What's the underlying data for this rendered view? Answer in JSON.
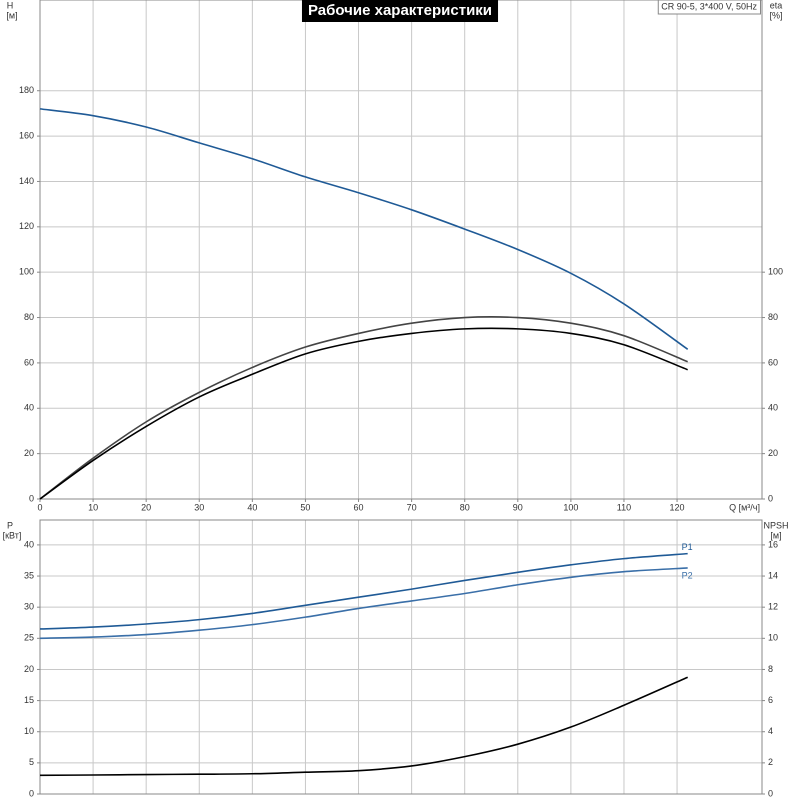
{
  "chart_data": [
    {
      "type": "line",
      "title": "Рабочие характеристики",
      "subtitle": "CR 90-5, 3*400 V, 50Hz",
      "xlabel": "Q [м³/ч]",
      "ylabel": "H",
      "yunit": "[м]",
      "y2label": "eta",
      "y2unit": "[%]",
      "x": [
        0,
        10,
        20,
        30,
        40,
        50,
        60,
        70,
        80,
        90,
        100,
        110,
        122
      ],
      "xlim": [
        0,
        136
      ],
      "xticks": [
        0,
        10,
        20,
        30,
        40,
        50,
        60,
        70,
        80,
        90,
        100,
        110,
        120
      ],
      "ylim": [
        0,
        220
      ],
      "yticks": [
        0,
        20,
        40,
        60,
        80,
        100,
        120,
        140,
        160,
        180
      ],
      "y2lim": [
        0,
        220
      ],
      "y2ticks": [
        0,
        20,
        40,
        60,
        80,
        100
      ],
      "grid": true,
      "series": [
        {
          "color": "#1f5a96",
          "values": [
            172,
            169,
            164,
            157,
            150,
            142,
            135,
            127.5,
            119,
            110,
            99.5,
            86,
            66
          ]
        },
        {
          "color": "#444444",
          "axis": "y2",
          "values": [
            0,
            18,
            34,
            47,
            58,
            67,
            73,
            77.5,
            80,
            80,
            77.5,
            72,
            60.5
          ]
        },
        {
          "color": "#000000",
          "axis": "y2",
          "values": [
            0,
            17,
            32,
            45,
            55,
            64,
            69.5,
            73,
            75,
            75,
            73,
            68,
            57
          ]
        }
      ]
    },
    {
      "type": "line",
      "ylabel": "P",
      "yunit": "[кВт]",
      "y2label": "NPSH",
      "y2unit": "[м]",
      "x": [
        0,
        10,
        20,
        30,
        40,
        50,
        60,
        70,
        80,
        90,
        100,
        110,
        122
      ],
      "xlim": [
        0,
        136
      ],
      "ylim": [
        0,
        44
      ],
      "yticks": [
        0,
        5,
        10,
        15,
        20,
        25,
        30,
        35,
        40
      ],
      "y2lim": [
        0,
        17.6
      ],
      "y2ticks": [
        0,
        2,
        4,
        6,
        8,
        10,
        12,
        14,
        16
      ],
      "grid": true,
      "series": [
        {
          "name": "P1",
          "color": "#1f5a96",
          "values": [
            26.5,
            26.8,
            27.3,
            28,
            29,
            30.3,
            31.6,
            32.9,
            34.3,
            35.6,
            36.8,
            37.8,
            38.6
          ]
        },
        {
          "name": "P2",
          "color": "#3a6fa8",
          "values": [
            25,
            25.2,
            25.6,
            26.3,
            27.2,
            28.4,
            29.8,
            31,
            32.2,
            33.6,
            34.8,
            35.7,
            36.3
          ]
        },
        {
          "color": "#000000",
          "axis": "y2",
          "values": [
            1.2,
            1.22,
            1.25,
            1.27,
            1.3,
            1.4,
            1.5,
            1.8,
            2.4,
            3.2,
            4.3,
            5.7,
            7.5
          ]
        }
      ]
    }
  ]
}
